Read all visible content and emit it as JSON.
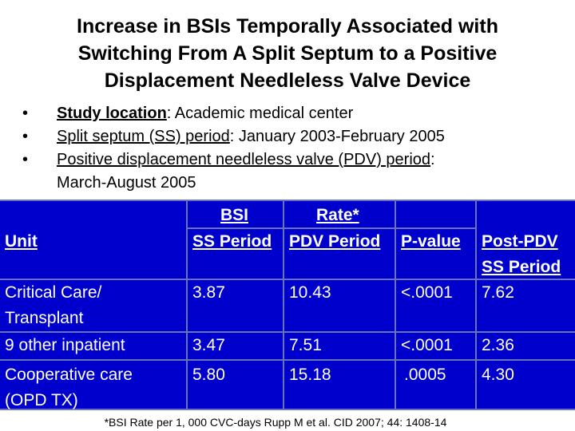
{
  "title": {
    "line1": "Increase in BSIs Temporally Associated with",
    "line2": "Switching From A Split Septum to a Positive",
    "line3": "Displacement Needleless Valve Device"
  },
  "bullets": [
    {
      "term": "Study location",
      "rest": ": Academic medical center"
    },
    {
      "term": "Split septum (SS) period",
      "rest": ": January 2003-February 2005"
    },
    {
      "term": "Positive displacement needleless valve (PDV) period",
      "rest": ":",
      "cont": "March-August 2005"
    }
  ],
  "table": {
    "group_header": {
      "left": "BSI",
      "right": "Rate*"
    },
    "columns": {
      "unit": "Unit",
      "ss_period": "SS Period",
      "pdv_period": "PDV Period",
      "p_value": "P-value",
      "post_pdv_line1": "Post-PDV",
      "post_pdv_line2": "SS Period"
    },
    "rows": [
      {
        "unit_line1": "Critical Care/",
        "unit_line2": "Transplant",
        "ss": "3.87",
        "pdv": "10.43",
        "p": "<.0001",
        "post": "7.62"
      },
      {
        "unit_line1": "9 other inpatient",
        "ss": "3.47",
        "pdv": "7.51",
        "p": "<.0001",
        "post": "2.36"
      },
      {
        "unit_line1": "Cooperative care",
        "unit_line2": "(OPD TX)",
        "ss": "5.80",
        "pdv": "15.18",
        "p": ".0005",
        "post": "4.30"
      }
    ]
  },
  "footnote": "*BSI Rate per 1, 000 CVC-days Rupp M et al. CID 2007; 44: 1408-14",
  "colors": {
    "table_background": "#0000cc",
    "table_grid": "#6b73b8",
    "table_text": "#ffffff"
  }
}
